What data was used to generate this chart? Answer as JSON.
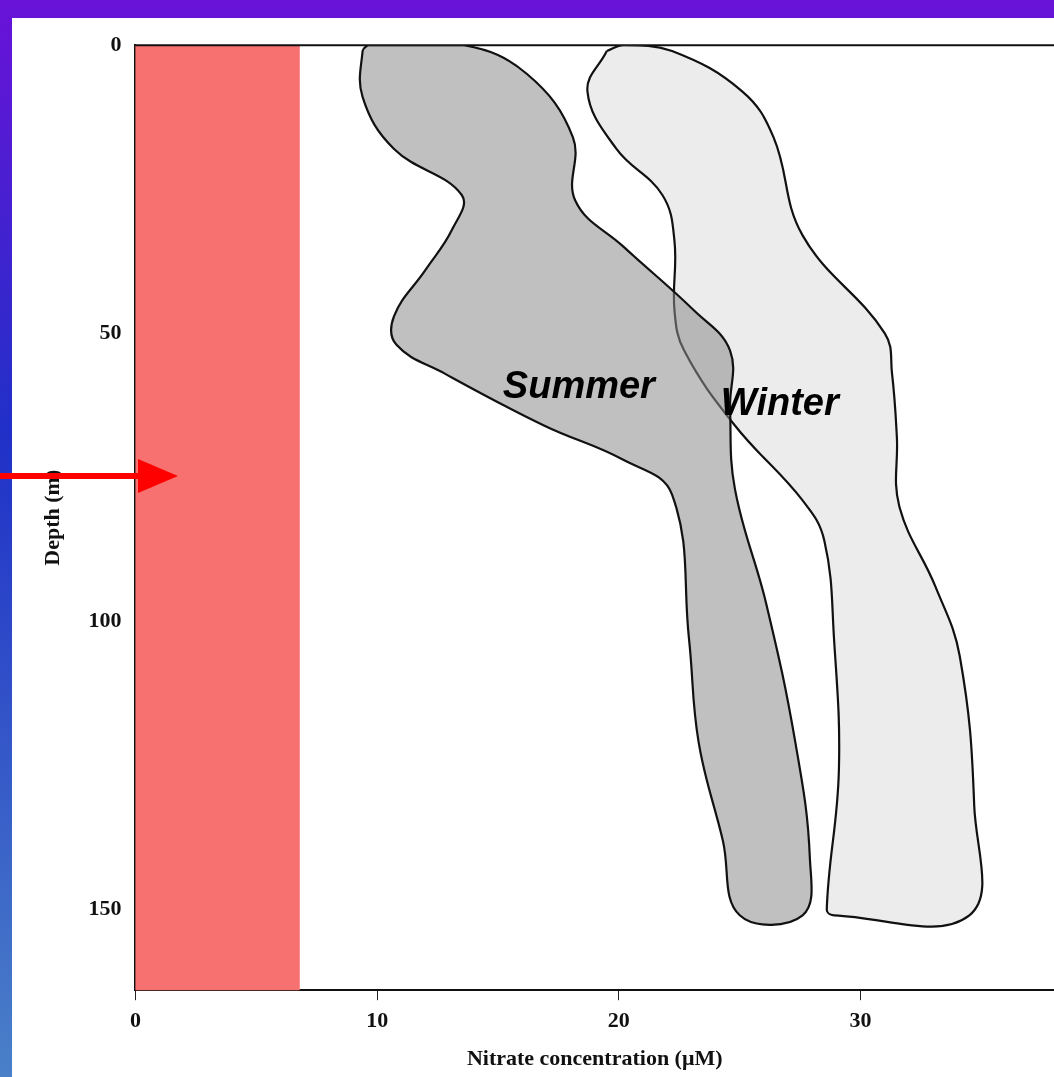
{
  "chart_data": {
    "type": "area",
    "xlabel": "Nitrate concentration (μM)",
    "ylabel": "Depth (m)",
    "xlim": [
      0,
      38
    ],
    "xticks": [
      0,
      10,
      20,
      30
    ],
    "ylim": [
      164,
      0
    ],
    "yticks": [
      0,
      50,
      100,
      150
    ],
    "grid": false,
    "legend": false,
    "marker": "none",
    "bands": [
      {
        "axis": "x",
        "from": 0,
        "to": 6.8,
        "color": "#f87171"
      }
    ],
    "series": [
      {
        "name": "Summer",
        "color": "#8c8c8c",
        "x": [
          9.6,
          9.4,
          9.4,
          10.7,
          13.5,
          13.1,
          12.0,
          10.7,
          10.8,
          12.8,
          16.9,
          20.2,
          22.2,
          22.9,
          23.3,
          24.3,
          25.0,
          27.6,
          27.9,
          27.3,
          26.1,
          24.8,
          24.6,
          24.6,
          23.1,
          20.2,
          18.2,
          18.1,
          16.2,
          13.6,
          9.6
        ],
        "values": [
          0,
          1,
          9,
          18,
          26,
          32,
          39,
          47,
          52,
          57,
          66,
          72,
          78,
          103,
          121,
          138,
          151,
          151,
          141,
          121,
          97,
          77,
          63,
          53,
          46,
          35,
          27,
          16,
          5,
          0,
          0
        ]
      },
      {
        "name": "Winter",
        "color": "#dcdcdc",
        "x": [
          19.5,
          18.7,
          19.9,
          21.8,
          22.3,
          22.3,
          22.7,
          24.8,
          27.6,
          28.5,
          28.9,
          29.1,
          28.6,
          28.9,
          34.5,
          34.7,
          34.1,
          33.1,
          31.6,
          31.5,
          31.3,
          31.0,
          27.6,
          26.4,
          25.1,
          22.2,
          20.2,
          19.5
        ],
        "values": [
          1,
          8,
          18,
          26,
          34,
          46,
          53,
          66,
          79,
          86,
          103,
          126,
          150,
          151,
          151,
          132,
          106,
          94,
          80,
          68,
          57,
          50,
          33,
          16,
          8,
          1,
          0,
          1
        ]
      }
    ]
  }
}
